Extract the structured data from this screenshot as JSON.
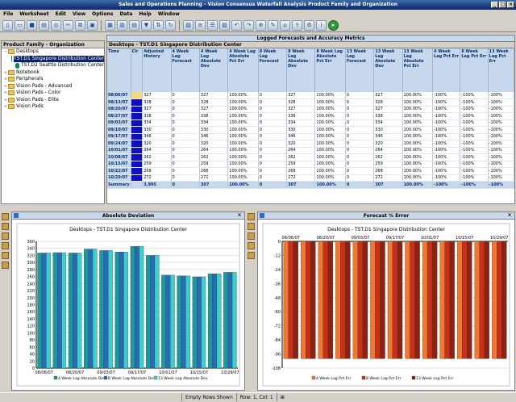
{
  "window": {
    "title": "Sales and Operations Planning - Vision Consensus Waterfall Analysis Product Family and Organization"
  },
  "menu": [
    "File",
    "Worksheet",
    "Edit",
    "View",
    "Options",
    "Data",
    "Help",
    "Window"
  ],
  "tree": {
    "header": "Product Family - Organization",
    "items": [
      {
        "label": "Desktops",
        "type": "folder",
        "level": 0
      },
      {
        "label": "TST.D1 Singapore Distribution Center",
        "type": "node",
        "level": 1,
        "selected": true
      },
      {
        "label": "TST.D2 Seattle Distribution Center",
        "type": "node",
        "level": 1
      },
      {
        "label": "Notebook",
        "type": "folder",
        "level": 0
      },
      {
        "label": "Peripherals",
        "type": "folder",
        "level": 0
      },
      {
        "label": "Vision Pads - Advanced",
        "type": "folder",
        "level": 0
      },
      {
        "label": "Vision Pads - Color",
        "type": "folder",
        "level": 0
      },
      {
        "label": "Vision Pads - Elite",
        "type": "folder",
        "level": 0
      },
      {
        "label": "Vision Pads",
        "type": "folder",
        "level": 0
      }
    ]
  },
  "grid": {
    "title": "Logged Forecasts and Accuracy Metrics",
    "subtitle": "Desktops - TST.D1 Singapore Distribution Center",
    "columns": [
      "Time",
      "Clr",
      "Adjusted History",
      "4 Week Lag Forecast",
      "4 Week Lag Absolute Dev",
      "4 Week Lag Absolute Pct Err",
      "8 Week Lag Forecast",
      "8 Week Lag Absolute Dev",
      "8 Week Lag Absolute Pct Err",
      "13 Week Lag Forecast",
      "13 Week Lag Absolute Dev",
      "13 Week Lag Absolute Pct Err",
      "4 Week Lag Pct Err",
      "8 Week Lag Pct Err",
      "13 Week Lag Pct Err"
    ],
    "rows": [
      [
        "08/06/07",
        "",
        "327",
        "0",
        "327",
        "100.00%",
        "0",
        "327",
        "100.00%",
        "0",
        "327",
        "100.00%",
        "-100%",
        "-100%",
        "-100%"
      ],
      [
        "08/13/07",
        "",
        "328",
        "0",
        "328",
        "100.00%",
        "0",
        "328",
        "100.00%",
        "0",
        "328",
        "100.00%",
        "-100%",
        "-100%",
        "-100%"
      ],
      [
        "08/20/07",
        "",
        "327",
        "0",
        "327",
        "100.00%",
        "0",
        "327",
        "100.00%",
        "0",
        "327",
        "100.00%",
        "-100%",
        "-100%",
        "-100%"
      ],
      [
        "08/27/07",
        "",
        "338",
        "0",
        "338",
        "100.00%",
        "0",
        "338",
        "100.00%",
        "0",
        "338",
        "100.00%",
        "-100%",
        "-100%",
        "-100%"
      ],
      [
        "09/03/07",
        "",
        "334",
        "0",
        "334",
        "100.00%",
        "0",
        "334",
        "100.00%",
        "0",
        "334",
        "100.00%",
        "-100%",
        "-100%",
        "-100%"
      ],
      [
        "09/10/07",
        "",
        "330",
        "0",
        "330",
        "100.00%",
        "0",
        "330",
        "100.00%",
        "0",
        "330",
        "100.00%",
        "-100%",
        "-100%",
        "-100%"
      ],
      [
        "09/17/07",
        "",
        "346",
        "0",
        "346",
        "100.00%",
        "0",
        "346",
        "100.00%",
        "0",
        "346",
        "100.00%",
        "-100%",
        "-100%",
        "-100%"
      ],
      [
        "09/24/07",
        "",
        "320",
        "0",
        "320",
        "100.00%",
        "0",
        "320",
        "100.00%",
        "0",
        "320",
        "100.00%",
        "-100%",
        "-100%",
        "-100%"
      ],
      [
        "10/01/07",
        "",
        "264",
        "0",
        "264",
        "100.00%",
        "0",
        "264",
        "100.00%",
        "0",
        "264",
        "100.00%",
        "-100%",
        "-100%",
        "-100%"
      ],
      [
        "10/08/07",
        "",
        "262",
        "0",
        "262",
        "100.00%",
        "0",
        "262",
        "100.00%",
        "0",
        "262",
        "100.00%",
        "-100%",
        "-100%",
        "-100%"
      ],
      [
        "10/15/07",
        "",
        "259",
        "0",
        "259",
        "100.00%",
        "0",
        "259",
        "100.00%",
        "0",
        "259",
        "100.00%",
        "-100%",
        "-100%",
        "-100%"
      ],
      [
        "10/22/07",
        "",
        "268",
        "0",
        "268",
        "100.00%",
        "0",
        "268",
        "100.00%",
        "0",
        "268",
        "100.00%",
        "-100%",
        "-100%",
        "-100%"
      ],
      [
        "10/29/07",
        "",
        "272",
        "0",
        "272",
        "100.00%",
        "0",
        "272",
        "100.00%",
        "0",
        "272",
        "100.00%",
        "-100%",
        "-100%",
        "-100%"
      ]
    ],
    "summary": [
      "Summary",
      "",
      "3,995",
      "0",
      "307",
      "100.00%",
      "0",
      "307",
      "100.00%",
      "0",
      "307",
      "100.00%",
      "-100%",
      "-100%",
      "-100%"
    ]
  },
  "chart_data": [
    {
      "type": "bar",
      "panel_title": "Absolute Deviation",
      "title": "Desktops - TST.D1 Singapore Distribution Center",
      "categories": [
        "08/06/07",
        "08/13/07",
        "08/20/07",
        "08/27/07",
        "09/03/07",
        "09/10/07",
        "09/17/07",
        "09/24/07",
        "10/01/07",
        "10/08/07",
        "10/15/07",
        "10/22/07",
        "10/29/07"
      ],
      "tick_labels": [
        "08/06/07",
        "08/20/07",
        "09/03/07",
        "09/17/07",
        "10/01/07",
        "10/15/07",
        "10/29/07"
      ],
      "series": [
        {
          "name": "4 Week Lag Absolute Dev",
          "color": "#1a9a9a",
          "values": [
            327,
            328,
            327,
            338,
            334,
            330,
            346,
            320,
            264,
            262,
            259,
            268,
            272
          ]
        },
        {
          "name": "8 Week Lag Absolute Dev",
          "color": "#2a6ab8",
          "values": [
            327,
            328,
            327,
            338,
            334,
            330,
            346,
            320,
            264,
            262,
            259,
            268,
            272
          ]
        },
        {
          "name": "13 Week Lag Absolute Dev",
          "color": "#3ad0d0",
          "values": [
            327,
            328,
            327,
            338,
            334,
            330,
            346,
            320,
            264,
            262,
            259,
            268,
            272
          ]
        }
      ],
      "ylim": [
        0,
        360
      ],
      "yticks": [
        0,
        20,
        40,
        60,
        80,
        100,
        120,
        140,
        160,
        180,
        200,
        220,
        240,
        260,
        280,
        300,
        320,
        340,
        360
      ],
      "legend": "bottom"
    },
    {
      "type": "bar",
      "panel_title": "Forecast % Error",
      "title": "Desktops - TST.D1 Singapore Distribution Center",
      "categories": [
        "08/06/07",
        "08/13/07",
        "08/20/07",
        "08/27/07",
        "09/03/07",
        "09/10/07",
        "09/17/07",
        "09/24/07",
        "10/01/07",
        "10/08/07",
        "10/15/07",
        "10/22/07",
        "10/29/07"
      ],
      "tick_labels": [
        "08/06/07",
        "08/20/07",
        "09/03/07",
        "09/17/07",
        "10/01/07",
        "10/15/07",
        "10/29/07"
      ],
      "series": [
        {
          "name": "4 Week Lag Pct Err",
          "color": "#f07830",
          "values": [
            -100,
            -100,
            -100,
            -100,
            -100,
            -100,
            -100,
            -100,
            -100,
            -100,
            -100,
            -100,
            -100
          ]
        },
        {
          "name": "8 Week Lag Pct Err",
          "color": "#c83018",
          "values": [
            -100,
            -100,
            -100,
            -100,
            -100,
            -100,
            -100,
            -100,
            -100,
            -100,
            -100,
            -100,
            -100
          ]
        },
        {
          "name": "13 Week Lag Pct Err",
          "color": "#902010",
          "values": [
            -100,
            -100,
            -100,
            -100,
            -100,
            -100,
            -100,
            -100,
            -100,
            -100,
            -100,
            -100,
            -100
          ]
        }
      ],
      "ylim": [
        -108,
        0
      ],
      "yticks": [
        0,
        -12,
        -24,
        -36,
        -48,
        -60,
        -72,
        -84,
        -96,
        -108
      ],
      "legend": "bottom"
    }
  ],
  "status": {
    "rows": "Empty Rows Shown",
    "position": "Row: 1, Col: 1"
  }
}
